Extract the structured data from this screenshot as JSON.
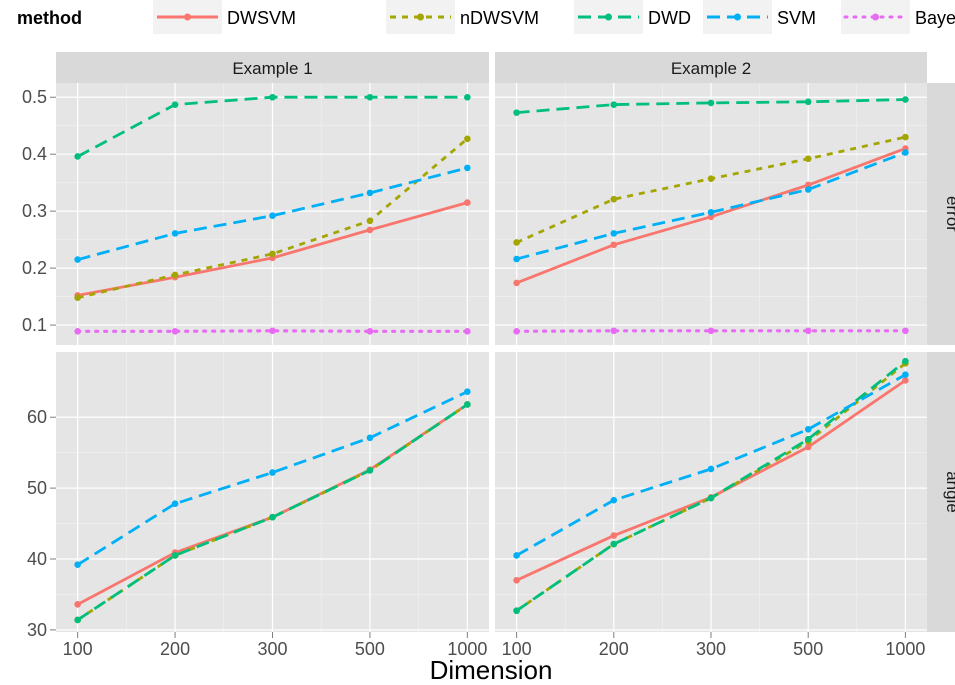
{
  "chart_data": {
    "type": "line",
    "xlabel": "Dimension",
    "ylabel": "",
    "legend": {
      "title": "method",
      "placement": "top",
      "entries": [
        "DWSVM",
        "nDWSVM",
        "DWD",
        "SVM",
        "Bayes"
      ]
    },
    "colors": {
      "DWSVM": "#F8766D",
      "nDWSVM": "#A3A500",
      "DWD": "#00BF7D",
      "SVM": "#00B0F6",
      "Bayes": "#E76BF3"
    },
    "categories": [
      "100",
      "200",
      "300",
      "500",
      "1000"
    ],
    "columns": [
      "Example 1",
      "Example 2"
    ],
    "rows": [
      {
        "label": "error",
        "ylim": [
          0.065,
          0.525
        ],
        "ticks": [
          "0.1",
          "0.2",
          "0.3",
          "0.4",
          "0.5"
        ]
      },
      {
        "label": "angle",
        "ylim": [
          29.7,
          69.2
        ],
        "ticks": [
          "30",
          "40",
          "50",
          "60"
        ]
      }
    ],
    "panels": [
      {
        "row": "error",
        "column": "Example 1",
        "series": [
          {
            "name": "DWSVM",
            "values": [
              0.152,
              0.184,
              0.218,
              0.267,
              0.315
            ]
          },
          {
            "name": "nDWSVM",
            "values": [
              0.148,
              0.188,
              0.225,
              0.283,
              0.427
            ]
          },
          {
            "name": "DWD",
            "values": [
              0.396,
              0.487,
              0.5,
              0.5,
              0.5
            ]
          },
          {
            "name": "SVM",
            "values": [
              0.215,
              0.261,
              0.292,
              0.332,
              0.376
            ]
          },
          {
            "name": "Bayes",
            "values": [
              0.089,
              0.089,
              0.09,
              0.089,
              0.089
            ]
          }
        ]
      },
      {
        "row": "error",
        "column": "Example 2",
        "series": [
          {
            "name": "DWSVM",
            "values": [
              0.174,
              0.241,
              0.29,
              0.346,
              0.41
            ]
          },
          {
            "name": "nDWSVM",
            "values": [
              0.245,
              0.321,
              0.357,
              0.392,
              0.43
            ]
          },
          {
            "name": "DWD",
            "values": [
              0.473,
              0.487,
              0.49,
              0.492,
              0.496
            ]
          },
          {
            "name": "SVM",
            "values": [
              0.216,
              0.261,
              0.298,
              0.338,
              0.403
            ]
          },
          {
            "name": "Bayes",
            "values": [
              0.089,
              0.09,
              0.09,
              0.09,
              0.09
            ]
          }
        ]
      },
      {
        "row": "angle",
        "column": "Example 1",
        "series": [
          {
            "name": "DWSVM",
            "values": [
              33.6,
              40.9,
              45.9,
              52.6,
              61.8
            ]
          },
          {
            "name": "nDWSVM",
            "values": [
              31.4,
              40.5,
              45.9,
              52.5,
              61.8
            ]
          },
          {
            "name": "DWD",
            "values": [
              31.4,
              40.5,
              45.9,
              52.5,
              61.8
            ]
          },
          {
            "name": "SVM",
            "values": [
              39.2,
              47.8,
              52.2,
              57.1,
              63.6
            ]
          }
        ]
      },
      {
        "row": "angle",
        "column": "Example 2",
        "series": [
          {
            "name": "DWSVM",
            "values": [
              37.0,
              43.3,
              48.7,
              55.8,
              65.2
            ]
          },
          {
            "name": "nDWSVM",
            "values": [
              32.7,
              42.1,
              48.6,
              56.6,
              67.6
            ]
          },
          {
            "name": "DWD",
            "values": [
              32.7,
              42.1,
              48.6,
              56.9,
              67.9
            ]
          },
          {
            "name": "SVM",
            "values": [
              40.5,
              48.3,
              52.7,
              58.3,
              66.0
            ]
          }
        ]
      }
    ]
  }
}
